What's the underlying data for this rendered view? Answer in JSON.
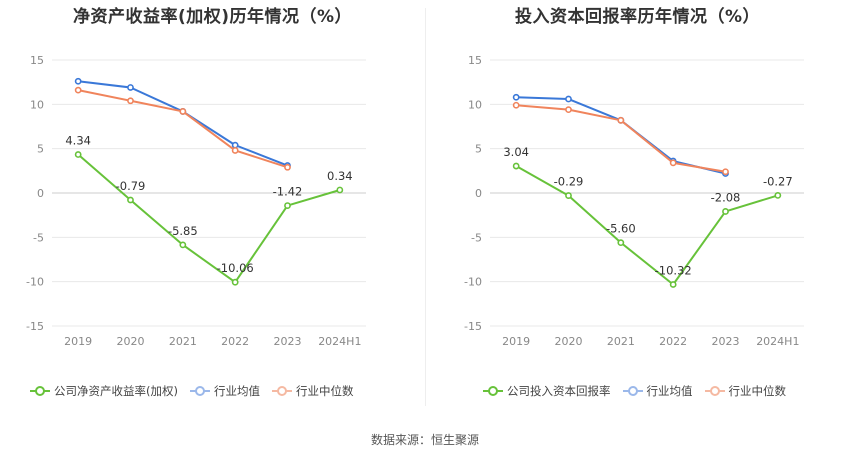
{
  "source": "数据来源：恒生聚源",
  "colors": {
    "company": "#67c23a",
    "avg": "#3a78d8",
    "median": "#f0845c",
    "grid": "#e8e8e8"
  },
  "legend_labels": {
    "avg": "行业均值",
    "median": "行业中位数"
  },
  "chart_data": [
    {
      "type": "line",
      "title": "净资产收益率(加权)历年情况（%）",
      "categories": [
        "2019",
        "2020",
        "2021",
        "2022",
        "2023",
        "2024H1"
      ],
      "ylim": [
        -15,
        15
      ],
      "yticks": [
        15,
        10,
        5,
        0,
        -5,
        -10,
        -15
      ],
      "grid": true,
      "legend_position": "bottom",
      "series": [
        {
          "name": "公司净资产收益率(加权)",
          "key": "company",
          "values": [
            4.34,
            -0.79,
            -5.85,
            -10.06,
            -1.42,
            0.34
          ],
          "labels": [
            "4.34",
            "-0.79",
            "-5.85",
            "-10.06",
            "-1.42",
            "0.34"
          ]
        },
        {
          "name": "行业均值",
          "key": "avg",
          "values": [
            12.6,
            11.9,
            9.2,
            5.4,
            3.1,
            null
          ]
        },
        {
          "name": "行业中位数",
          "key": "median",
          "values": [
            11.6,
            10.4,
            9.2,
            4.8,
            2.9,
            null
          ]
        }
      ]
    },
    {
      "type": "line",
      "title": "投入资本回报率历年情况（%）",
      "categories": [
        "2019",
        "2020",
        "2021",
        "2022",
        "2023",
        "2024H1"
      ],
      "ylim": [
        -15,
        15
      ],
      "yticks": [
        15,
        10,
        5,
        0,
        -5,
        -10,
        -15
      ],
      "grid": true,
      "legend_position": "bottom",
      "series": [
        {
          "name": "公司投入资本回报率",
          "key": "company",
          "values": [
            3.04,
            -0.29,
            -5.6,
            -10.32,
            -2.08,
            -0.27
          ],
          "labels": [
            "3.04",
            "-0.29",
            "-5.60",
            "-10.32",
            "-2.08",
            "-0.27"
          ]
        },
        {
          "name": "行业均值",
          "key": "avg",
          "values": [
            10.8,
            10.6,
            8.2,
            3.6,
            2.2,
            null
          ]
        },
        {
          "name": "行业中位数",
          "key": "median",
          "values": [
            9.9,
            9.4,
            8.2,
            3.4,
            2.4,
            null
          ]
        }
      ]
    }
  ]
}
